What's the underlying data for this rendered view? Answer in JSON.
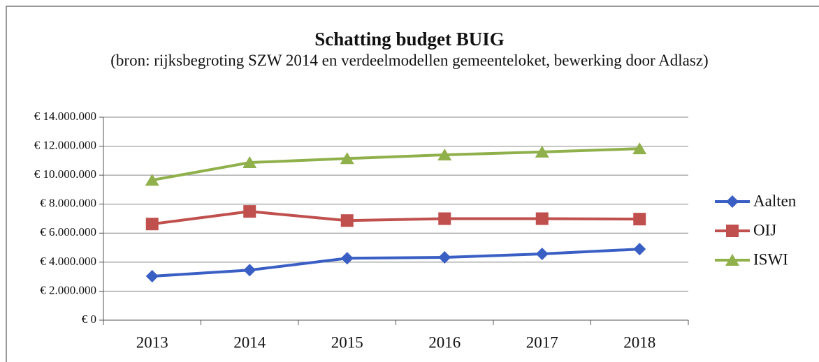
{
  "chart_data": {
    "type": "line",
    "title": "Schatting budget BUIG",
    "subtitle": "(bron: rijksbegroting SZW 2014 en verdeelmodellen gemeenteloket, bewerking door Adlasz)",
    "categories": [
      "2013",
      "2014",
      "2015",
      "2016",
      "2017",
      "2018"
    ],
    "series": [
      {
        "name": "Aalten",
        "color": "#3a5fc4",
        "marker": "diamond",
        "values": [
          3030000,
          3450000,
          4270000,
          4330000,
          4570000,
          4900000
        ]
      },
      {
        "name": "OIJ",
        "color": "#c0504d",
        "marker": "square",
        "values": [
          6630000,
          7500000,
          6870000,
          7000000,
          7000000,
          6970000
        ]
      },
      {
        "name": "ISWI",
        "color": "#8fb04a",
        "marker": "triangle",
        "values": [
          9660000,
          10870000,
          11150000,
          11400000,
          11600000,
          11830000
        ]
      }
    ],
    "ylim": [
      0,
      14000000
    ],
    "yticks": [
      {
        "value": 0,
        "label": "€ 0"
      },
      {
        "value": 2000000,
        "label": "€ 2.000.000"
      },
      {
        "value": 4000000,
        "label": "€ 4.000.000"
      },
      {
        "value": 6000000,
        "label": "€ 6.000.000"
      },
      {
        "value": 8000000,
        "label": "€ 8.000.000"
      },
      {
        "value": 10000000,
        "label": "€ 10.000.000"
      },
      {
        "value": 12000000,
        "label": "€ 12.000.000"
      },
      {
        "value": 14000000,
        "label": "€ 14.000.000"
      }
    ],
    "grid": true,
    "legend": "right"
  }
}
